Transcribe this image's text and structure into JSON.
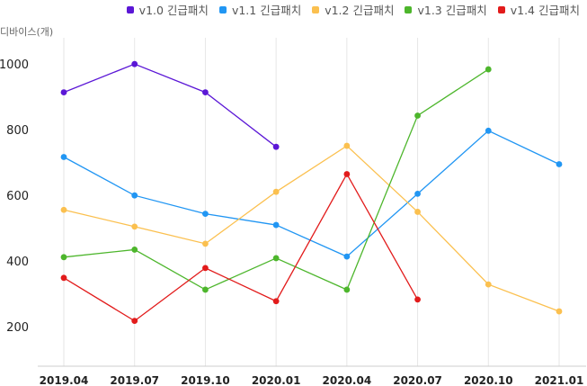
{
  "chart_data": {
    "type": "line",
    "categories": [
      "2019.04",
      "2019.07",
      "2019.10",
      "2020.01",
      "2020.04",
      "2020.07",
      "2020.10",
      "2021.01"
    ],
    "ylabel": "디바이스(개)",
    "ylim": [
      80,
      1080
    ],
    "yticks": [
      200,
      400,
      600,
      800,
      1000
    ],
    "grid": "vertical",
    "legend_position": "top-right",
    "series": [
      {
        "name": "v1.0 긴급패치",
        "color": "#5b17d6",
        "values": [
          914,
          1000,
          914,
          748,
          null,
          null,
          null,
          null
        ]
      },
      {
        "name": "v1.1 긴급패치",
        "color": "#2196f3",
        "values": [
          717,
          600,
          544,
          510,
          414,
          605,
          797,
          695
        ]
      },
      {
        "name": "v1.2 긴급패치",
        "color": "#fbc04f",
        "values": [
          556,
          505,
          453,
          611,
          751,
          550,
          329,
          247
        ]
      },
      {
        "name": "v1.3 긴급패치",
        "color": "#4db62c",
        "values": [
          412,
          435,
          313,
          409,
          313,
          843,
          984,
          null
        ]
      },
      {
        "name": "v1.4 긴급패치",
        "color": "#e21b1b",
        "values": [
          349,
          218,
          379,
          278,
          665,
          283,
          null,
          null
        ]
      }
    ]
  }
}
